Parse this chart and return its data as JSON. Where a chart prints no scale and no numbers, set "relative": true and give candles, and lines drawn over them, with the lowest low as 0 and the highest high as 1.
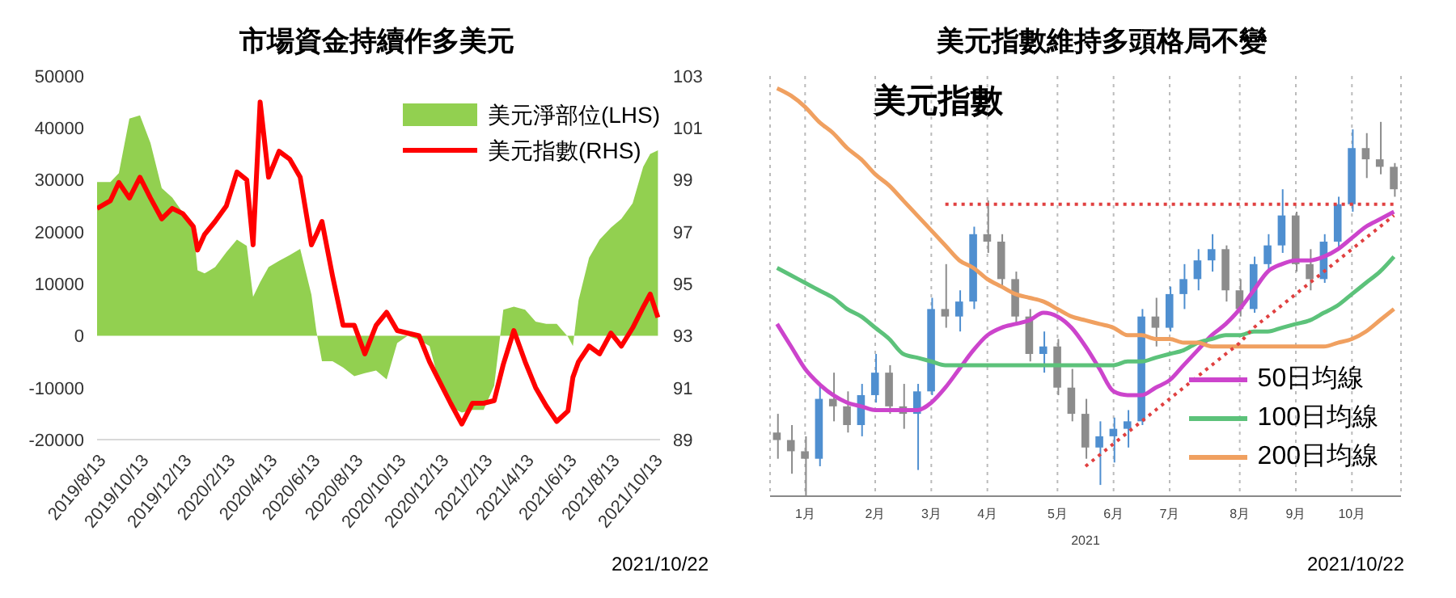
{
  "chart_data": [
    {
      "type": "area",
      "title": "市場資金持續作多美元",
      "annotations": [
        "2021/10/22"
      ],
      "legend": "top right",
      "grid": false,
      "x": [
        "2019-08-13",
        "2019-09-01",
        "2019-09-13",
        "2019-09-28",
        "2019-10-13",
        "2019-10-28",
        "2019-11-13",
        "2019-11-28",
        "2019-12-13",
        "2019-12-28",
        "2020-01-03",
        "2020-01-13",
        "2020-01-28",
        "2020-02-13",
        "2020-02-28",
        "2020-03-13",
        "2020-03-22",
        "2020-04-01",
        "2020-04-13",
        "2020-04-28",
        "2020-05-13",
        "2020-05-28",
        "2020-06-13",
        "2020-06-20",
        "2020-06-28",
        "2020-07-13",
        "2020-07-28",
        "2020-08-13",
        "2020-08-28",
        "2020-09-13",
        "2020-09-28",
        "2020-10-13",
        "2020-10-28",
        "2020-11-13",
        "2020-11-28",
        "2020-12-13",
        "2020-12-28",
        "2021-01-13",
        "2021-01-28",
        "2021-02-13",
        "2021-02-28",
        "2021-03-13",
        "2021-03-28",
        "2021-04-13",
        "2021-04-28",
        "2021-05-13",
        "2021-05-28",
        "2021-06-13",
        "2021-06-20",
        "2021-06-28",
        "2021-07-13",
        "2021-07-28",
        "2021-08-13",
        "2021-08-28",
        "2021-09-13",
        "2021-09-28",
        "2021-10-08",
        "2021-10-19"
      ],
      "xlim": [
        "2019-08-13",
        "2021-10-22"
      ],
      "xticks": [
        {
          "value": "2019-08-13",
          "label": "2019/8/13"
        },
        {
          "value": "2019-10-13",
          "label": "2019/10/13"
        },
        {
          "value": "2019-12-13",
          "label": "2019/12/13"
        },
        {
          "value": "2020-02-13",
          "label": "2020/2/13"
        },
        {
          "value": "2020-04-13",
          "label": "2020/4/13"
        },
        {
          "value": "2020-06-13",
          "label": "2020/6/13"
        },
        {
          "value": "2020-08-13",
          "label": "2020/8/13"
        },
        {
          "value": "2020-10-13",
          "label": "2020/10/13"
        },
        {
          "value": "2020-12-13",
          "label": "2020/12/13"
        },
        {
          "value": "2021-02-13",
          "label": "2021/2/13"
        },
        {
          "value": "2021-04-13",
          "label": "2021/4/13"
        },
        {
          "value": "2021-06-13",
          "label": "2021/6/13"
        },
        {
          "value": "2021-08-13",
          "label": "2021/8/13"
        },
        {
          "value": "2021-10-13",
          "label": "2021/10/13"
        }
      ],
      "ylim": [
        -20000,
        50000
      ],
      "yticks": [
        -20000,
        -10000,
        0,
        10000,
        20000,
        30000,
        40000,
        50000
      ],
      "y2lim": [
        89,
        103
      ],
      "y2ticks": [
        89,
        91,
        93,
        95,
        97,
        99,
        101,
        103
      ],
      "series": [
        {
          "name": "美元淨部位(LHS)",
          "type": "area",
          "color": "#92d050",
          "values": [
            29600,
            29600,
            31300,
            41800,
            42400,
            37100,
            28400,
            26600,
            23700,
            20800,
            12600,
            12000,
            13200,
            16100,
            18500,
            17300,
            7500,
            10300,
            13200,
            14400,
            15500,
            16700,
            7900,
            900,
            -4900,
            -4900,
            -6100,
            -7800,
            -7200,
            -6700,
            -8400,
            -1400,
            0,
            -800,
            -2000,
            -9600,
            -13700,
            -14800,
            -14300,
            -14300,
            -9600,
            5000,
            5600,
            5000,
            2700,
            2300,
            2300,
            -200,
            -2000,
            6800,
            15000,
            18500,
            20800,
            22500,
            25500,
            32500,
            35000,
            35700
          ]
        },
        {
          "name": "美元指數(RHS)",
          "type": "line",
          "axis": "y2",
          "color": "#ff0000",
          "values": [
            97.9,
            98.2,
            98.9,
            98.3,
            99.1,
            98.3,
            97.5,
            97.9,
            97.7,
            97.2,
            96.3,
            96.9,
            97.4,
            98.0,
            99.3,
            99.0,
            96.5,
            102.0,
            99.1,
            100.1,
            99.8,
            99.1,
            96.5,
            96.9,
            97.4,
            95.3,
            93.4,
            93.4,
            92.3,
            93.4,
            93.9,
            93.2,
            93.1,
            93.0,
            92.0,
            91.2,
            90.4,
            89.6,
            90.4,
            90.4,
            90.5,
            91.9,
            93.2,
            92.0,
            91.0,
            90.3,
            89.7,
            90.1,
            91.4,
            92.0,
            92.6,
            92.3,
            93.1,
            92.6,
            93.3,
            94.1,
            94.6,
            93.7
          ]
        }
      ]
    },
    {
      "type": "candlestick",
      "title": "美元指數維持多頭格局不變",
      "subtitle": "美元指數",
      "xlabel": "2021",
      "annotations": [
        "2021/10/22"
      ],
      "relative": true,
      "legend": "bottom right",
      "grid": "x",
      "colors": [
        "#8c8c8c",
        "#8c8c8c",
        "#8c8c8c",
        "#4f8fd0",
        "#8c8c8c",
        "#8c8c8c",
        "#4f8fd0",
        "#4f8fd0",
        "#8c8c8c",
        "#8c8c8c",
        "#4f8fd0",
        "#4f8fd0",
        "#8c8c8c",
        "#4f8fd0",
        "#4f8fd0",
        "#8c8c8c",
        "#8c8c8c",
        "#8c8c8c",
        "#8c8c8c",
        "#4f8fd0",
        "#8c8c8c",
        "#8c8c8c",
        "#8c8c8c",
        "#4f8fd0",
        "#4f8fd0",
        "#4f8fd0",
        "#4f8fd0",
        "#8c8c8c",
        "#4f8fd0",
        "#4f8fd0",
        "#4f8fd0",
        "#4f8fd0",
        "#8c8c8c",
        "#8c8c8c",
        "#4f8fd0",
        "#4f8fd0",
        "#4f8fd0",
        "#8c8c8c",
        "#8c8c8c",
        "#4f8fd0",
        "#4f8fd0",
        "#4f8fd0",
        "#8c8c8c",
        "#8c8c8c",
        "#8c8c8c"
      ],
      "categories": [
        null,
        null,
        "1月",
        null,
        null,
        null,
        null,
        "2月",
        null,
        null,
        null,
        "3月",
        null,
        null,
        null,
        "4月",
        null,
        null,
        null,
        null,
        "5月",
        null,
        null,
        null,
        "6月",
        null,
        null,
        null,
        "7月",
        null,
        null,
        null,
        null,
        "8月",
        null,
        null,
        null,
        "9月",
        null,
        null,
        null,
        "10月",
        null,
        null,
        null
      ],
      "ohlc": [
        [
          0.17,
          0.22,
          0.1,
          0.15
        ],
        [
          0.15,
          0.19,
          0.06,
          0.12
        ],
        [
          0.12,
          0.16,
          0,
          0.1
        ],
        [
          0.1,
          0.3,
          0.08,
          0.26
        ],
        [
          0.26,
          0.33,
          0.2,
          0.24
        ],
        [
          0.24,
          0.28,
          0.17,
          0.19
        ],
        [
          0.19,
          0.3,
          0.16,
          0.27
        ],
        [
          0.27,
          0.38,
          0.25,
          0.33
        ],
        [
          0.33,
          0.35,
          0.22,
          0.24
        ],
        [
          0.24,
          0.3,
          0.18,
          0.22
        ],
        [
          0.22,
          0.3,
          0.07,
          0.28
        ],
        [
          0.28,
          0.53,
          0.27,
          0.5
        ],
        [
          0.5,
          0.62,
          0.45,
          0.48
        ],
        [
          0.48,
          0.55,
          0.44,
          0.52
        ],
        [
          0.52,
          0.72,
          0.5,
          0.7
        ],
        [
          0.7,
          0.79,
          0.65,
          0.68
        ],
        [
          0.68,
          0.7,
          0.56,
          0.58
        ],
        [
          0.58,
          0.6,
          0.46,
          0.48
        ],
        [
          0.48,
          0.5,
          0.36,
          0.38
        ],
        [
          0.38,
          0.44,
          0.33,
          0.4
        ],
        [
          0.4,
          0.42,
          0.27,
          0.29
        ],
        [
          0.29,
          0.34,
          0.2,
          0.22
        ],
        [
          0.22,
          0.26,
          0.1,
          0.13
        ],
        [
          0.13,
          0.2,
          0.03,
          0.16
        ],
        [
          0.16,
          0.21,
          0.09,
          0.18
        ],
        [
          0.18,
          0.23,
          0.13,
          0.2
        ],
        [
          0.2,
          0.5,
          0.19,
          0.48
        ],
        [
          0.48,
          0.53,
          0.4,
          0.45
        ],
        [
          0.45,
          0.56,
          0.44,
          0.54
        ],
        [
          0.54,
          0.62,
          0.5,
          0.58
        ],
        [
          0.58,
          0.66,
          0.55,
          0.63
        ],
        [
          0.63,
          0.7,
          0.6,
          0.66
        ],
        [
          0.66,
          0.67,
          0.52,
          0.55
        ],
        [
          0.55,
          0.58,
          0.48,
          0.5
        ],
        [
          0.5,
          0.64,
          0.49,
          0.62
        ],
        [
          0.62,
          0.7,
          0.6,
          0.67
        ],
        [
          0.67,
          0.82,
          0.65,
          0.75
        ],
        [
          0.75,
          0.76,
          0.6,
          0.62
        ],
        [
          0.62,
          0.66,
          0.55,
          0.58
        ],
        [
          0.58,
          0.7,
          0.57,
          0.68
        ],
        [
          0.68,
          0.8,
          0.66,
          0.78
        ],
        [
          0.78,
          0.98,
          0.76,
          0.93
        ],
        [
          0.93,
          0.97,
          0.85,
          0.9
        ],
        [
          0.9,
          1.0,
          0.86,
          0.88
        ],
        [
          0.88,
          0.89,
          0.8,
          0.82
        ]
      ],
      "series": [
        {
          "name": "50日均線",
          "type": "line",
          "color": "#cc44cc",
          "values": [
            0.46,
            0.4,
            0.34,
            0.3,
            0.27,
            0.25,
            0.24,
            0.23,
            0.23,
            0.23,
            0.23,
            0.25,
            0.29,
            0.34,
            0.39,
            0.43,
            0.45,
            0.46,
            0.47,
            0.49,
            0.48,
            0.45,
            0.4,
            0.34,
            0.28,
            0.27,
            0.27,
            0.29,
            0.31,
            0.35,
            0.39,
            0.43,
            0.46,
            0.5,
            0.55,
            0.6,
            0.62,
            0.63,
            0.63,
            0.64,
            0.66,
            0.69,
            0.72,
            0.74,
            0.76
          ]
        },
        {
          "name": "100日均線",
          "type": "line",
          "color": "#5cc27a",
          "values": [
            0.61,
            0.59,
            0.57,
            0.55,
            0.53,
            0.5,
            0.48,
            0.45,
            0.42,
            0.38,
            0.37,
            0.36,
            0.35,
            0.35,
            0.35,
            0.35,
            0.35,
            0.35,
            0.35,
            0.35,
            0.35,
            0.35,
            0.35,
            0.35,
            0.35,
            0.36,
            0.36,
            0.37,
            0.38,
            0.39,
            0.41,
            0.42,
            0.43,
            0.43,
            0.44,
            0.44,
            0.45,
            0.46,
            0.47,
            0.49,
            0.51,
            0.54,
            0.57,
            0.6,
            0.64
          ]
        },
        {
          "name": "200日均線",
          "type": "line",
          "color": "#f0a060",
          "values": [
            1.09,
            1.07,
            1.04,
            1.0,
            0.97,
            0.93,
            0.9,
            0.86,
            0.83,
            0.79,
            0.75,
            0.71,
            0.67,
            0.63,
            0.61,
            0.58,
            0.56,
            0.54,
            0.53,
            0.52,
            0.5,
            0.48,
            0.47,
            0.46,
            0.45,
            0.43,
            0.43,
            0.42,
            0.42,
            0.41,
            0.41,
            0.4,
            0.4,
            0.4,
            0.4,
            0.4,
            0.4,
            0.4,
            0.4,
            0.4,
            0.41,
            0.42,
            0.44,
            0.47,
            0.5
          ]
        },
        {
          "type": "line",
          "color": "#e04040",
          "line_style": "dotted",
          "values": [
            null,
            null,
            null,
            null,
            null,
            null,
            null,
            null,
            null,
            null,
            null,
            null,
            0.78,
            0.78,
            0.78,
            0.78,
            0.78,
            0.78,
            0.78,
            0.78,
            0.78,
            0.78,
            0.78,
            0.78,
            0.78,
            0.78,
            0.78,
            0.78,
            0.78,
            0.78,
            0.78,
            0.78,
            0.78,
            0.78,
            0.78,
            0.78,
            0.78,
            0.78,
            0.78,
            0.78,
            0.78,
            0.78,
            0.78,
            0.78,
            0.78
          ]
        },
        {
          "type": "line",
          "color": "#e04040",
          "line_style": "dotted",
          "values": [
            null,
            null,
            null,
            null,
            null,
            null,
            null,
            null,
            null,
            null,
            null,
            null,
            null,
            null,
            null,
            null,
            null,
            null,
            null,
            null,
            null,
            null,
            0.08,
            0.11,
            0.14,
            0.17,
            0.2,
            0.23,
            0.26,
            0.29,
            0.32,
            0.35,
            0.38,
            0.41,
            0.45,
            0.48,
            0.51,
            0.54,
            0.57,
            0.6,
            0.63,
            0.66,
            0.69,
            0.72,
            0.75
          ]
        }
      ]
    }
  ]
}
